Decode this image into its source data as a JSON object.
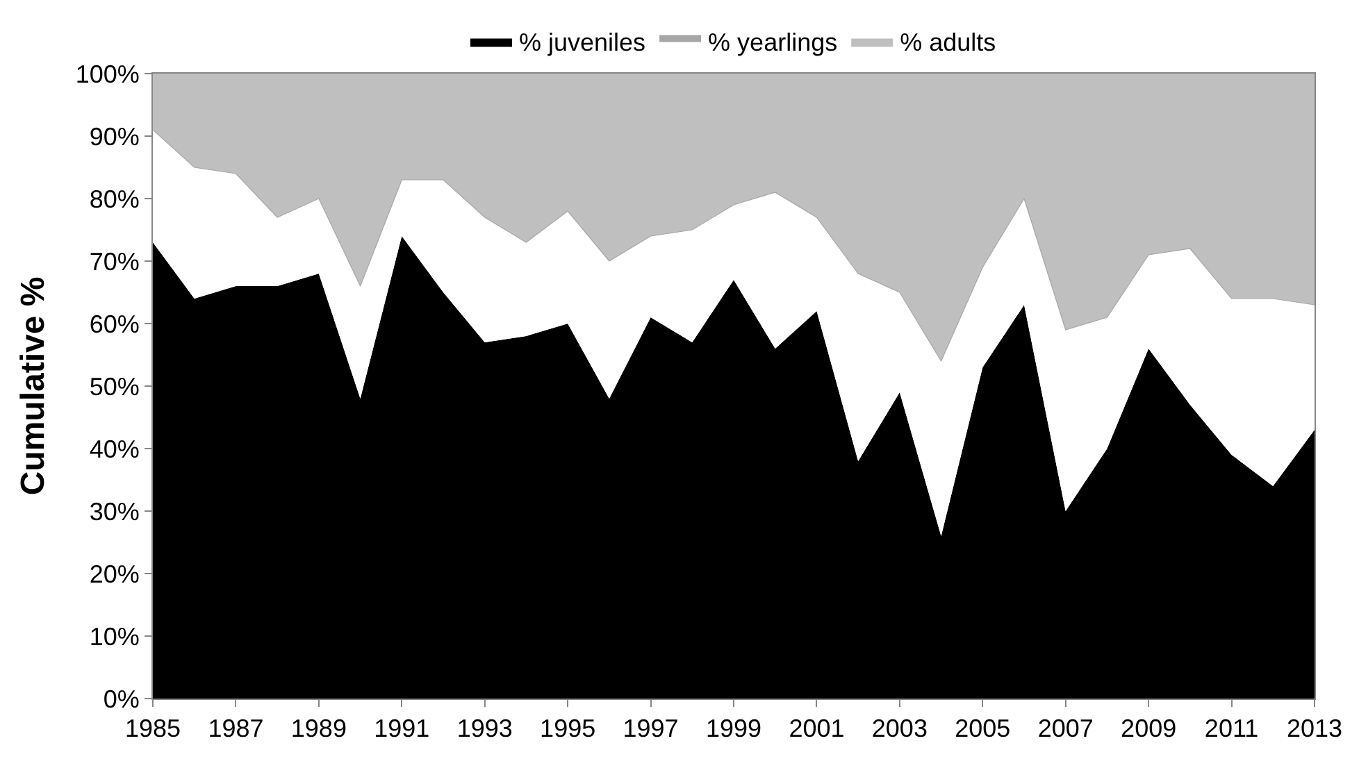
{
  "chart_data": {
    "type": "area",
    "stacked": true,
    "ylabel": "Cumulative %",
    "x": [
      1985,
      1986,
      1987,
      1988,
      1989,
      1990,
      1991,
      1992,
      1993,
      1994,
      1995,
      1996,
      1997,
      1998,
      1999,
      2000,
      2001,
      2002,
      2003,
      2004,
      2005,
      2006,
      2007,
      2008,
      2009,
      2010,
      2011,
      2012,
      2013
    ],
    "series": [
      {
        "name": "% juveniles",
        "color": "#000000",
        "values": [
          73,
          64,
          66,
          66,
          68,
          48,
          74,
          65,
          57,
          58,
          60,
          48,
          61,
          57,
          67,
          56,
          62,
          38,
          49,
          26,
          53,
          63,
          30,
          40,
          56,
          47,
          39,
          34,
          43
        ]
      },
      {
        "name": "% yearlings",
        "color": "#ffffff",
        "values": [
          18,
          21,
          18,
          11,
          12,
          18,
          9,
          18,
          20,
          15,
          18,
          22,
          13,
          18,
          12,
          25,
          15,
          30,
          16,
          28,
          16,
          17,
          29,
          21,
          15,
          25,
          25,
          30,
          20
        ]
      },
      {
        "name": "% adults",
        "color": "#bfbfbf",
        "values": [
          9,
          15,
          16,
          23,
          20,
          34,
          17,
          17,
          23,
          27,
          22,
          30,
          26,
          25,
          21,
          19,
          23,
          32,
          35,
          46,
          31,
          20,
          41,
          39,
          29,
          28,
          36,
          36,
          37
        ]
      }
    ],
    "xlim": [
      1985,
      2013
    ],
    "xticks": [
      1985,
      1987,
      1989,
      1991,
      1993,
      1995,
      1997,
      1999,
      2001,
      2003,
      2005,
      2007,
      2009,
      2011,
      2013
    ],
    "ylim": [
      0,
      100
    ],
    "yticks": [
      {
        "value": 0,
        "label": "0%"
      },
      {
        "value": 10,
        "label": "10%"
      },
      {
        "value": 20,
        "label": "20%"
      },
      {
        "value": 30,
        "label": "30%"
      },
      {
        "value": 40,
        "label": "40%"
      },
      {
        "value": 50,
        "label": "50%"
      },
      {
        "value": 60,
        "label": "60%"
      },
      {
        "value": 70,
        "label": "70%"
      },
      {
        "value": 80,
        "label": "80%"
      },
      {
        "value": 90,
        "label": "90%"
      },
      {
        "value": 100,
        "label": "100%"
      }
    ],
    "grid": false,
    "legend": "top"
  }
}
